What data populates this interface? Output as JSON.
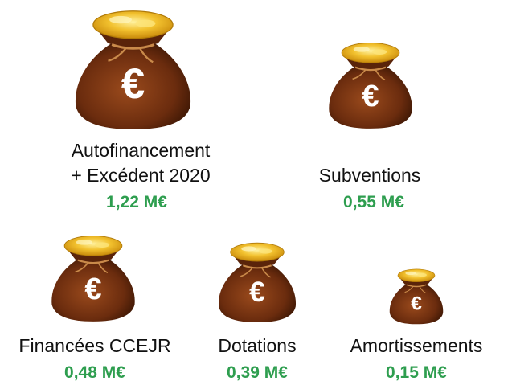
{
  "items": [
    {
      "label": [
        "Autofinancement",
        "+ Excédent 2020"
      ],
      "value": "1,22 M€"
    },
    {
      "label": [
        "Subventions"
      ],
      "value": "0,55 M€"
    },
    {
      "label": [
        "Financées CCEJR"
      ],
      "value": "0,48 M€"
    },
    {
      "label": [
        "Dotations"
      ],
      "value": "0,39 M€"
    },
    {
      "label": [
        "Amortissements"
      ],
      "value": "0,15 M€"
    }
  ]
}
